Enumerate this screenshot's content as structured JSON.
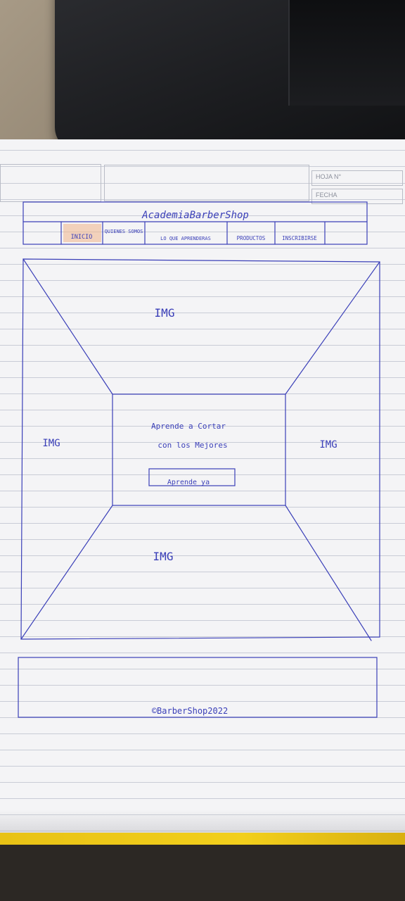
{
  "notebook_header": {
    "sheet_label": "HOJA N°",
    "date_label": "FECHA"
  },
  "sketch": {
    "site_title": "AcademiaBarberShop",
    "nav_items": [
      {
        "label": "INICIO",
        "highlight_color": "#f0b48a"
      },
      {
        "label": "QUIENES SOMOS"
      },
      {
        "label": "LO QUE APRENDERAS"
      },
      {
        "label": "PRODUCTOS"
      },
      {
        "label": "INSCRIBIRSE"
      }
    ],
    "image_placeholders": {
      "top": "IMG",
      "left": "IMG",
      "right": "IMG",
      "bottom": "IMG"
    },
    "hero_line_1": "Aprende   a   Cortar",
    "hero_line_2": "con los   Mejores",
    "cta_label": "Aprende ya",
    "footer_text": "©BarberShop2022",
    "ink_color": "#3a3fb8"
  }
}
